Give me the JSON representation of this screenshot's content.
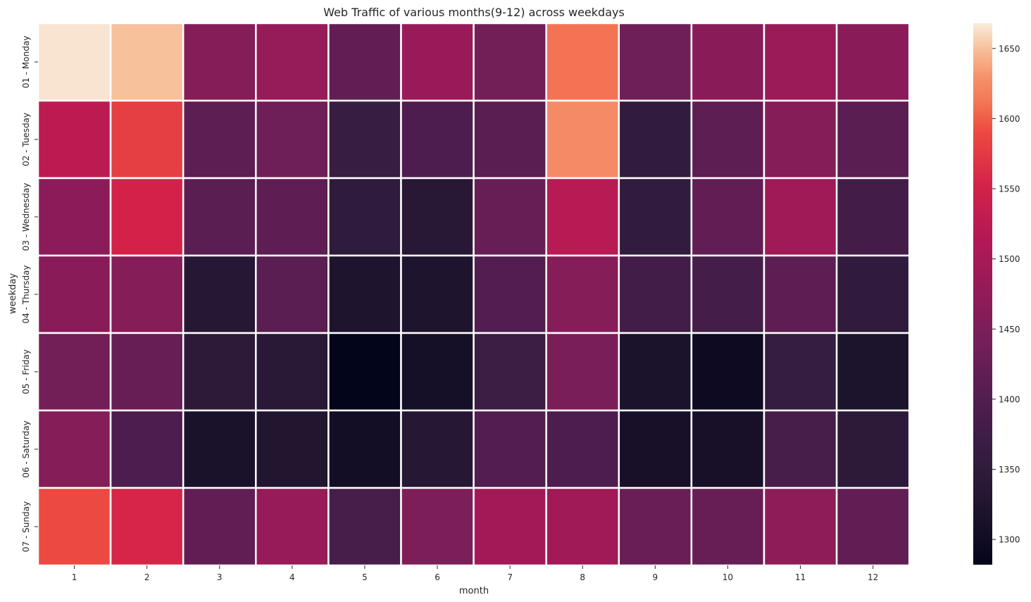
{
  "chart_data": {
    "type": "heatmap",
    "title": "Web Traffic of various months(9-12) across weekdays",
    "xlabel": "month",
    "ylabel": "weekday",
    "x_categories": [
      "1",
      "2",
      "3",
      "4",
      "5",
      "6",
      "7",
      "8",
      "9",
      "10",
      "11",
      "12"
    ],
    "y_categories": [
      "01 - Monday",
      "02 - Tuesday",
      "03 - Wednesday",
      "04 - Thursday",
      "05 - Friday",
      "06 - Saturday",
      "07 - Sunday"
    ],
    "values": [
      [
        1665,
        1650,
        1460,
        1478,
        1420,
        1483,
        1440,
        1610,
        1435,
        1465,
        1485,
        1465
      ],
      [
        1525,
        1580,
        1412,
        1435,
        1365,
        1395,
        1410,
        1625,
        1355,
        1412,
        1460,
        1410
      ],
      [
        1468,
        1552,
        1410,
        1415,
        1350,
        1338,
        1425,
        1520,
        1355,
        1420,
        1490,
        1380
      ],
      [
        1465,
        1460,
        1335,
        1410,
        1322,
        1322,
        1400,
        1460,
        1378,
        1382,
        1415,
        1352
      ],
      [
        1440,
        1425,
        1345,
        1340,
        1282,
        1308,
        1370,
        1448,
        1316,
        1296,
        1360,
        1318
      ],
      [
        1460,
        1395,
        1315,
        1325,
        1305,
        1335,
        1400,
        1395,
        1310,
        1310,
        1385,
        1345
      ],
      [
        1590,
        1555,
        1420,
        1480,
        1385,
        1450,
        1495,
        1490,
        1428,
        1425,
        1470,
        1420
      ]
    ],
    "vmin": 1282,
    "vmax": 1668,
    "colorbar_ticks": [
      1300,
      1350,
      1400,
      1450,
      1500,
      1550,
      1600,
      1650
    ],
    "colormap": "rocket",
    "cell_separator_color": "#ffffff",
    "grid": false,
    "legend": "colorbar-right"
  }
}
